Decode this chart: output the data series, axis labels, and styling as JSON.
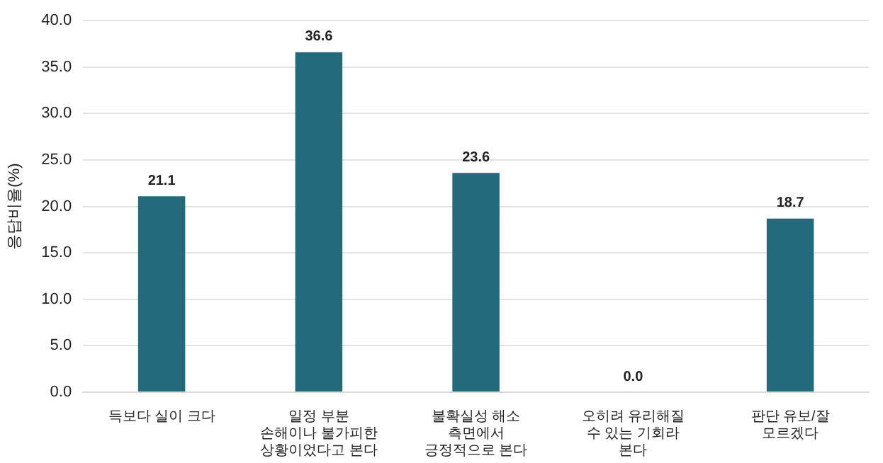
{
  "chart_data": {
    "type": "bar",
    "ylabel": "응답비율(%)",
    "categories": [
      "득보다 실이 크다",
      "일정 부분 손해이나 불가피한 상황이었다고 본다",
      "불확실성 해소 측면에서 긍정적으로 본다",
      "오히려 유리해질 수 있는 기회라 본다",
      "판단 유보/잘 모르겠다"
    ],
    "values": [
      21.1,
      36.6,
      23.6,
      0.0,
      18.7
    ],
    "value_labels": [
      "21.1",
      "36.6",
      "23.6",
      "0.0",
      "18.7"
    ],
    "color": "#236b7a",
    "ylim": [
      0,
      40
    ],
    "yticks": [
      {
        "value": 0,
        "label": "0.0"
      },
      {
        "value": 5,
        "label": "5.0"
      },
      {
        "value": 10,
        "label": "10.0"
      },
      {
        "value": 15,
        "label": "15.0"
      },
      {
        "value": 20,
        "label": "20.0"
      },
      {
        "value": 25,
        "label": "25.0"
      },
      {
        "value": 30,
        "label": "30.0"
      },
      {
        "value": 35,
        "label": "35.0"
      },
      {
        "value": 40,
        "label": "40.0"
      }
    ],
    "grid": "y",
    "legend": false
  }
}
